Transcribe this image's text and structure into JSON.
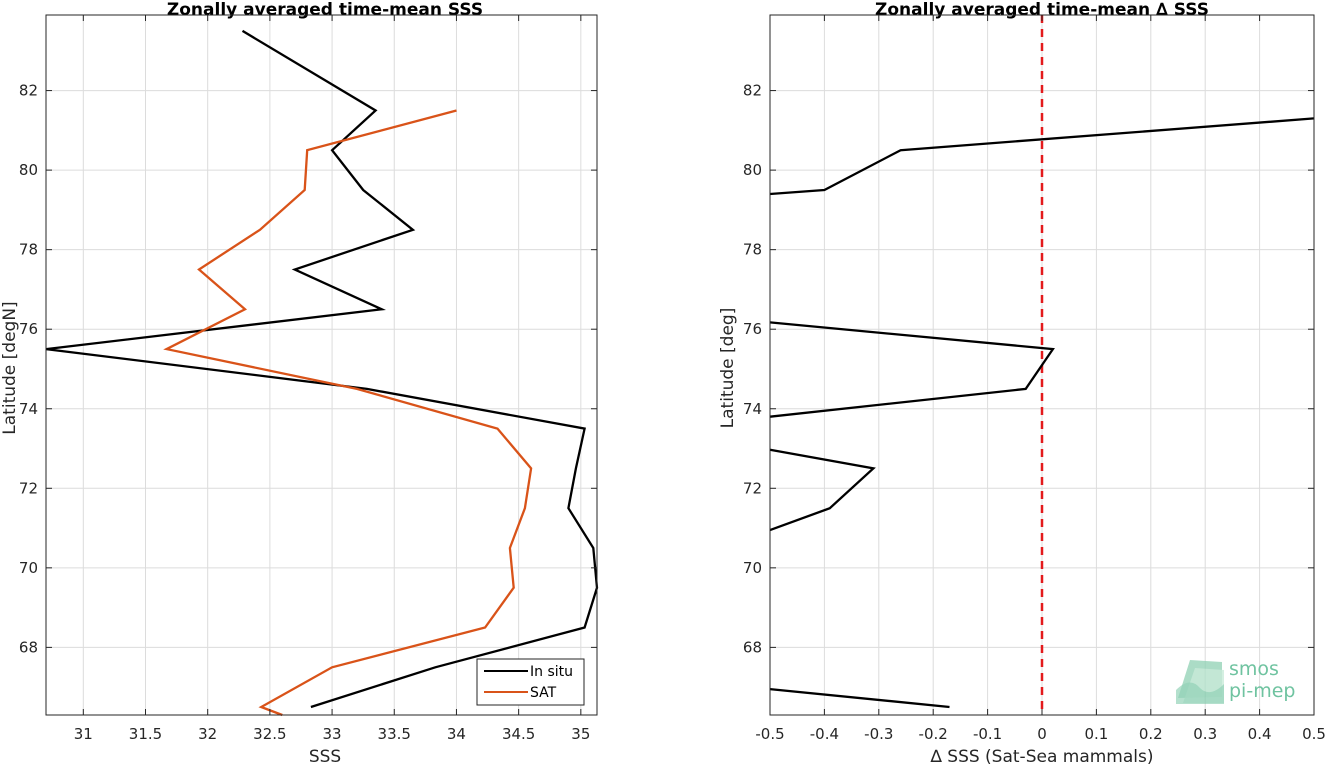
{
  "chart_data": [
    {
      "type": "line",
      "title": "Zonally averaged time-mean SSS",
      "xlabel": "SSS",
      "ylabel": "Latitude [degN]",
      "xlim": [
        30.7,
        35.13
      ],
      "ylim": [
        66.3,
        83.9
      ],
      "xticks": [
        31,
        31.5,
        32,
        32.5,
        33,
        33.5,
        34,
        34.5,
        35
      ],
      "xtick_labels": [
        "31",
        "31.5",
        "32",
        "32.5",
        "33",
        "33.5",
        "34",
        "34.5",
        "35"
      ],
      "yticks": [
        68,
        70,
        72,
        74,
        76,
        78,
        80,
        82
      ],
      "ytick_labels": [
        "68",
        "70",
        "72",
        "74",
        "76",
        "78",
        "80",
        "82"
      ],
      "grid": true,
      "legend": "bottom-right",
      "series": [
        {
          "name": "In situ",
          "color": "#000000",
          "points": [
            [
              32.83,
              66.5
            ],
            [
              33.83,
              67.5
            ],
            [
              35.03,
              68.5
            ],
            [
              35.13,
              69.5
            ],
            [
              35.1,
              70.5
            ],
            [
              34.9,
              71.5
            ],
            [
              34.96,
              72.5
            ],
            [
              35.03,
              73.5
            ],
            [
              33.28,
              74.5
            ],
            [
              30.7,
              75.5
            ],
            [
              33.4,
              76.5
            ],
            [
              32.7,
              77.5
            ],
            [
              33.65,
              78.5
            ],
            [
              33.25,
              79.5
            ],
            [
              33.0,
              80.5
            ],
            [
              33.35,
              81.5
            ],
            [
              32.28,
              83.5
            ]
          ]
        },
        {
          "name": "SAT",
          "color": "#d95319",
          "points": [
            [
              32.6,
              66.3
            ],
            [
              32.43,
              66.5
            ],
            [
              33.0,
              67.5
            ],
            [
              34.23,
              68.5
            ],
            [
              34.46,
              69.5
            ],
            [
              34.43,
              70.5
            ],
            [
              34.55,
              71.5
            ],
            [
              34.6,
              72.5
            ],
            [
              34.33,
              73.5
            ],
            [
              33.2,
              74.5
            ],
            [
              31.67,
              75.5
            ],
            [
              32.3,
              76.5
            ],
            [
              31.93,
              77.5
            ],
            [
              32.42,
              78.5
            ],
            [
              32.78,
              79.5
            ],
            [
              32.8,
              80.5
            ],
            [
              34.0,
              81.5
            ]
          ]
        }
      ]
    },
    {
      "type": "line",
      "title": "Zonally averaged time-mean ∆ SSS",
      "xlabel": "∆ SSS (Sat-Sea mammals)",
      "ylabel": "Latitude [deg]",
      "xlim": [
        -0.5,
        0.5
      ],
      "ylim": [
        66.3,
        83.9
      ],
      "xticks": [
        -0.5,
        -0.4,
        -0.3,
        -0.2,
        -0.1,
        0,
        0.1,
        0.2,
        0.3,
        0.4,
        0.5
      ],
      "xtick_labels": [
        "-0.5",
        "-0.4",
        "-0.3",
        "-0.2",
        "-0.1",
        "0",
        "0.1",
        "0.2",
        "0.3",
        "0.4",
        "0.5"
      ],
      "yticks": [
        68,
        70,
        72,
        74,
        76,
        78,
        80,
        82
      ],
      "ytick_labels": [
        "68",
        "70",
        "72",
        "74",
        "76",
        "78",
        "80",
        "82"
      ],
      "grid": true,
      "reference_line": {
        "x": 0,
        "color": "#e31a1c",
        "style": "dashed"
      },
      "series": [
        {
          "color": "#000000",
          "segments": [
            [
              [
                -0.5,
                66.95
              ],
              [
                -0.17,
                66.5
              ]
            ],
            [
              [
                -0.5,
                70.95
              ],
              [
                -0.39,
                71.5
              ],
              [
                -0.31,
                72.5
              ],
              [
                -0.5,
                72.97
              ]
            ],
            [
              [
                -0.5,
                73.8
              ],
              [
                -0.03,
                74.5
              ],
              [
                0.02,
                75.5
              ],
              [
                -0.5,
                76.17
              ]
            ],
            [
              [
                -0.5,
                79.4
              ],
              [
                -0.4,
                79.5
              ],
              [
                -0.26,
                80.5
              ],
              [
                0.5,
                81.3
              ]
            ]
          ]
        }
      ]
    }
  ],
  "logo": {
    "line1": "smos",
    "line2": "pi-mep"
  }
}
